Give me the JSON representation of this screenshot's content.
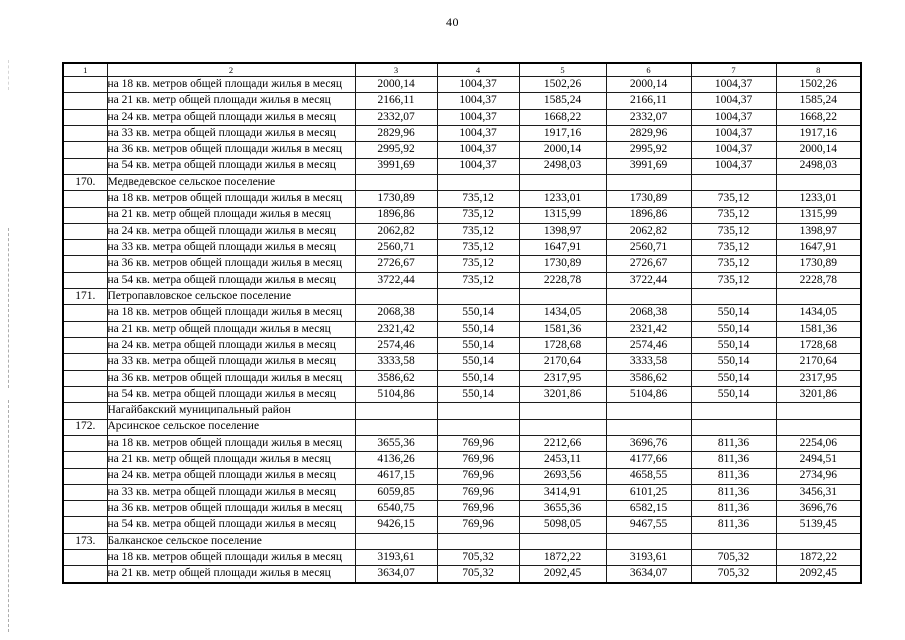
{
  "page": {
    "number": "40"
  },
  "colors": {
    "background": "#ffffff",
    "text": "#000000",
    "table_border": "#1c1c1c",
    "margin_artifact": "#8a8a8a"
  },
  "table": {
    "column_headers": [
      "1",
      "2",
      "3",
      "4",
      "5",
      "6",
      "7",
      "8"
    ],
    "rows": [
      {
        "num": "",
        "label": "на 18 кв. метров общей площади жилья в месяц",
        "values": [
          "2000,14",
          "1004,37",
          "1502,26",
          "2000,14",
          "1004,37",
          "1502,26"
        ]
      },
      {
        "num": "",
        "label": "на 21 кв. метр общей площади жилья в месяц",
        "values": [
          "2166,11",
          "1004,37",
          "1585,24",
          "2166,11",
          "1004,37",
          "1585,24"
        ]
      },
      {
        "num": "",
        "label": "на 24 кв. метра общей площади жилья в месяц",
        "values": [
          "2332,07",
          "1004,37",
          "1668,22",
          "2332,07",
          "1004,37",
          "1668,22"
        ]
      },
      {
        "num": "",
        "label": "на 33 кв. метра общей площади жилья в месяц",
        "values": [
          "2829,96",
          "1004,37",
          "1917,16",
          "2829,96",
          "1004,37",
          "1917,16"
        ]
      },
      {
        "num": "",
        "label": "на 36 кв. метров общей площади жилья в месяц",
        "values": [
          "2995,92",
          "1004,37",
          "2000,14",
          "2995,92",
          "1004,37",
          "2000,14"
        ]
      },
      {
        "num": "",
        "label": "на 54 кв. метра общей площади жилья в месяц",
        "values": [
          "3991,69",
          "1004,37",
          "2498,03",
          "3991,69",
          "1004,37",
          "2498,03"
        ]
      },
      {
        "num": "170.",
        "label": "Медведевское сельское поселение",
        "values": [
          "",
          "",
          "",
          "",
          "",
          ""
        ]
      },
      {
        "num": "",
        "label": "на 18 кв. метров общей площади жилья в месяц",
        "values": [
          "1730,89",
          "735,12",
          "1233,01",
          "1730,89",
          "735,12",
          "1233,01"
        ]
      },
      {
        "num": "",
        "label": "на 21 кв. метр общей площади жилья в месяц",
        "values": [
          "1896,86",
          "735,12",
          "1315,99",
          "1896,86",
          "735,12",
          "1315,99"
        ]
      },
      {
        "num": "",
        "label": "на 24 кв. метра общей площади жилья в месяц",
        "values": [
          "2062,82",
          "735,12",
          "1398,97",
          "2062,82",
          "735,12",
          "1398,97"
        ]
      },
      {
        "num": "",
        "label": "на 33 кв. метра общей площади жилья в месяц",
        "values": [
          "2560,71",
          "735,12",
          "1647,91",
          "2560,71",
          "735,12",
          "1647,91"
        ]
      },
      {
        "num": "",
        "label": "на 36 кв. метров общей площади жилья в месяц",
        "values": [
          "2726,67",
          "735,12",
          "1730,89",
          "2726,67",
          "735,12",
          "1730,89"
        ]
      },
      {
        "num": "",
        "label": "на 54 кв. метра общей площади жилья в месяц",
        "values": [
          "3722,44",
          "735,12",
          "2228,78",
          "3722,44",
          "735,12",
          "2228,78"
        ]
      },
      {
        "num": "171.",
        "label": "Петропавловское сельское поселение",
        "values": [
          "",
          "",
          "",
          "",
          "",
          ""
        ]
      },
      {
        "num": "",
        "label": "на 18 кв. метров общей площади жилья в месяц",
        "values": [
          "2068,38",
          "550,14",
          "1434,05",
          "2068,38",
          "550,14",
          "1434,05"
        ]
      },
      {
        "num": "",
        "label": "на 21 кв. метр общей площади жилья в месяц",
        "values": [
          "2321,42",
          "550,14",
          "1581,36",
          "2321,42",
          "550,14",
          "1581,36"
        ]
      },
      {
        "num": "",
        "label": "на 24 кв. метра общей площади жилья в месяц",
        "values": [
          "2574,46",
          "550,14",
          "1728,68",
          "2574,46",
          "550,14",
          "1728,68"
        ]
      },
      {
        "num": "",
        "label": "на 33 кв. метра общей площади жилья в месяц",
        "values": [
          "3333,58",
          "550,14",
          "2170,64",
          "3333,58",
          "550,14",
          "2170,64"
        ]
      },
      {
        "num": "",
        "label": "на 36 кв. метров общей площади жилья в месяц",
        "values": [
          "3586,62",
          "550,14",
          "2317,95",
          "3586,62",
          "550,14",
          "2317,95"
        ]
      },
      {
        "num": "",
        "label": "на 54 кв. метра общей площади жилья в месяц",
        "values": [
          "5104,86",
          "550,14",
          "3201,86",
          "5104,86",
          "550,14",
          "3201,86"
        ]
      },
      {
        "num": "",
        "label": "Нагайбакский муниципальный район",
        "values": [
          "",
          "",
          "",
          "",
          "",
          ""
        ]
      },
      {
        "num": "172.",
        "label": "Арсинское сельское поселение",
        "values": [
          "",
          "",
          "",
          "",
          "",
          ""
        ]
      },
      {
        "num": "",
        "label": "на 18 кв. метров общей площади жилья в месяц",
        "values": [
          "3655,36",
          "769,96",
          "2212,66",
          "3696,76",
          "811,36",
          "2254,06"
        ]
      },
      {
        "num": "",
        "label": "на 21 кв. метр общей площади жилья в месяц",
        "values": [
          "4136,26",
          "769,96",
          "2453,11",
          "4177,66",
          "811,36",
          "2494,51"
        ]
      },
      {
        "num": "",
        "label": "на 24 кв. метра общей площади жилья в месяц",
        "values": [
          "4617,15",
          "769,96",
          "2693,56",
          "4658,55",
          "811,36",
          "2734,96"
        ]
      },
      {
        "num": "",
        "label": "на 33 кв. метра общей площади жилья в месяц",
        "values": [
          "6059,85",
          "769,96",
          "3414,91",
          "6101,25",
          "811,36",
          "3456,31"
        ]
      },
      {
        "num": "",
        "label": "на 36 кв. метров общей площади жилья в месяц",
        "values": [
          "6540,75",
          "769,96",
          "3655,36",
          "6582,15",
          "811,36",
          "3696,76"
        ]
      },
      {
        "num": "",
        "label": "на 54 кв. метра общей площади жилья в месяц",
        "values": [
          "9426,15",
          "769,96",
          "5098,05",
          "9467,55",
          "811,36",
          "5139,45"
        ]
      },
      {
        "num": "173.",
        "label": "Балканское сельское поселение",
        "values": [
          "",
          "",
          "",
          "",
          "",
          ""
        ]
      },
      {
        "num": "",
        "label": "на 18 кв. метров общей площади жилья в месяц",
        "values": [
          "3193,61",
          "705,32",
          "1872,22",
          "3193,61",
          "705,32",
          "1872,22"
        ]
      },
      {
        "num": "",
        "label": "на 21 кв. метр общей площади жилья в месяц",
        "values": [
          "3634,07",
          "705,32",
          "2092,45",
          "3634,07",
          "705,32",
          "2092,45"
        ]
      }
    ]
  }
}
